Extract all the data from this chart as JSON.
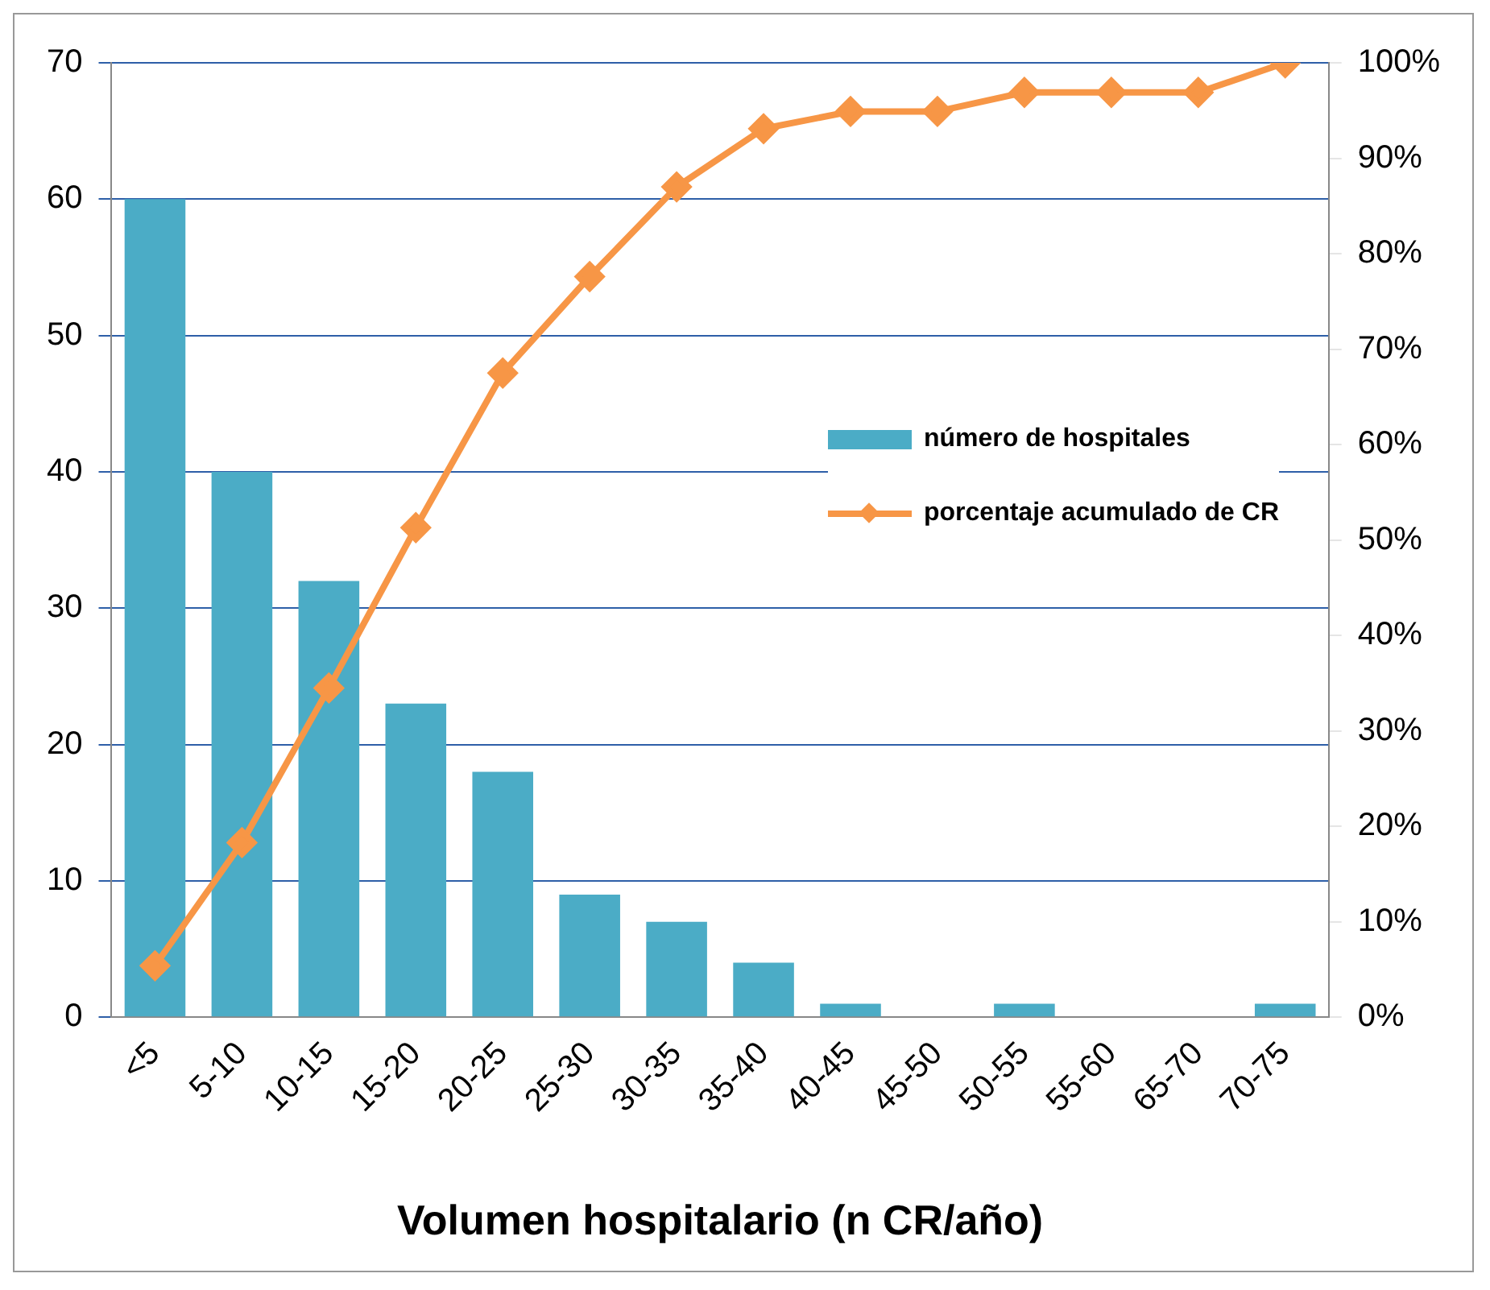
{
  "chart_data": {
    "type": "bar",
    "xlabel": "Volumen hospitalario (n CR/año)",
    "categories": [
      "<5",
      "5-10",
      "10-15",
      "15-20",
      "20-25",
      "25-30",
      "30-35",
      "35-40",
      "40-45",
      "45-50",
      "50-55",
      "55-60",
      "65-70",
      "70-75"
    ],
    "series": [
      {
        "name": "número de hospitales",
        "color": "#4bacc6",
        "values": [
          60,
          40,
          32,
          23,
          18,
          9,
          7,
          4,
          1,
          0,
          1,
          0,
          0,
          1
        ]
      },
      {
        "name": "porcentaje acumulado de CR",
        "type": "line",
        "axis": "y2",
        "color": "#f79646",
        "marker": "diamond",
        "values": [
          5.4,
          18.3,
          34.5,
          51.3,
          67.5,
          77.6,
          87,
          93.1,
          94.9,
          94.9,
          96.9,
          96.9,
          96.9,
          100
        ]
      }
    ],
    "ylim": [
      0,
      70
    ],
    "yticks": [
      0,
      10,
      20,
      30,
      40,
      50,
      60,
      70
    ],
    "y2lim": [
      0,
      100
    ],
    "y2ticks": [
      {
        "value": 0,
        "label": "0%"
      },
      {
        "value": 10,
        "label": "10%"
      },
      {
        "value": 20,
        "label": "20%"
      },
      {
        "value": 30,
        "label": "30%"
      },
      {
        "value": 40,
        "label": "40%"
      },
      {
        "value": 50,
        "label": "50%"
      },
      {
        "value": 60,
        "label": "60%"
      },
      {
        "value": 70,
        "label": "70%"
      },
      {
        "value": 80,
        "label": "80%"
      },
      {
        "value": 90,
        "label": "90%"
      },
      {
        "value": 100,
        "label": "100%"
      }
    ],
    "grid": "y",
    "legend": "right"
  }
}
